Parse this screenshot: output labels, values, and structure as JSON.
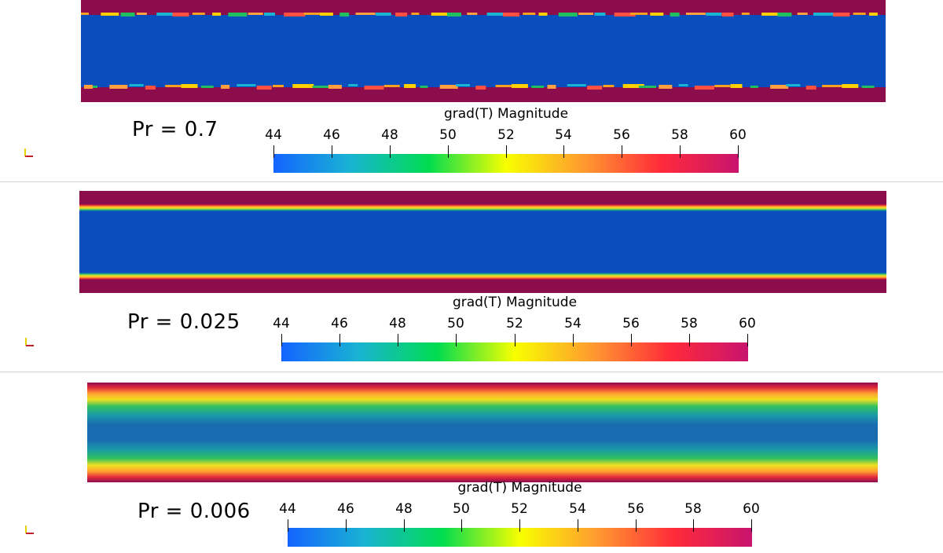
{
  "colorbar": {
    "title": "grad(T) Magnitude",
    "min": 44,
    "max": 60,
    "ticks": [
      "44",
      "46",
      "48",
      "50",
      "52",
      "54",
      "56",
      "58",
      "60"
    ],
    "colors": [
      "#1464ff",
      "#19b4d2",
      "#00dc50",
      "#f8ff00",
      "#ff9a30",
      "#ff2a3a",
      "#c8146e"
    ]
  },
  "panels": [
    {
      "label": "Pr = 0.7",
      "wall_color": "#8c0d4c",
      "core_color": "#0a4dbd",
      "profile": "sharp-irregular"
    },
    {
      "label": "Pr = 0.025",
      "wall_color": "#8c0d4c",
      "core_color": "#0a4dbd",
      "profile": "sharp-banded"
    },
    {
      "label": "Pr = 0.006",
      "wall_color": "#8c0d4c",
      "core_color": "#1a6cb0",
      "profile": "smooth-gradient"
    }
  ]
}
